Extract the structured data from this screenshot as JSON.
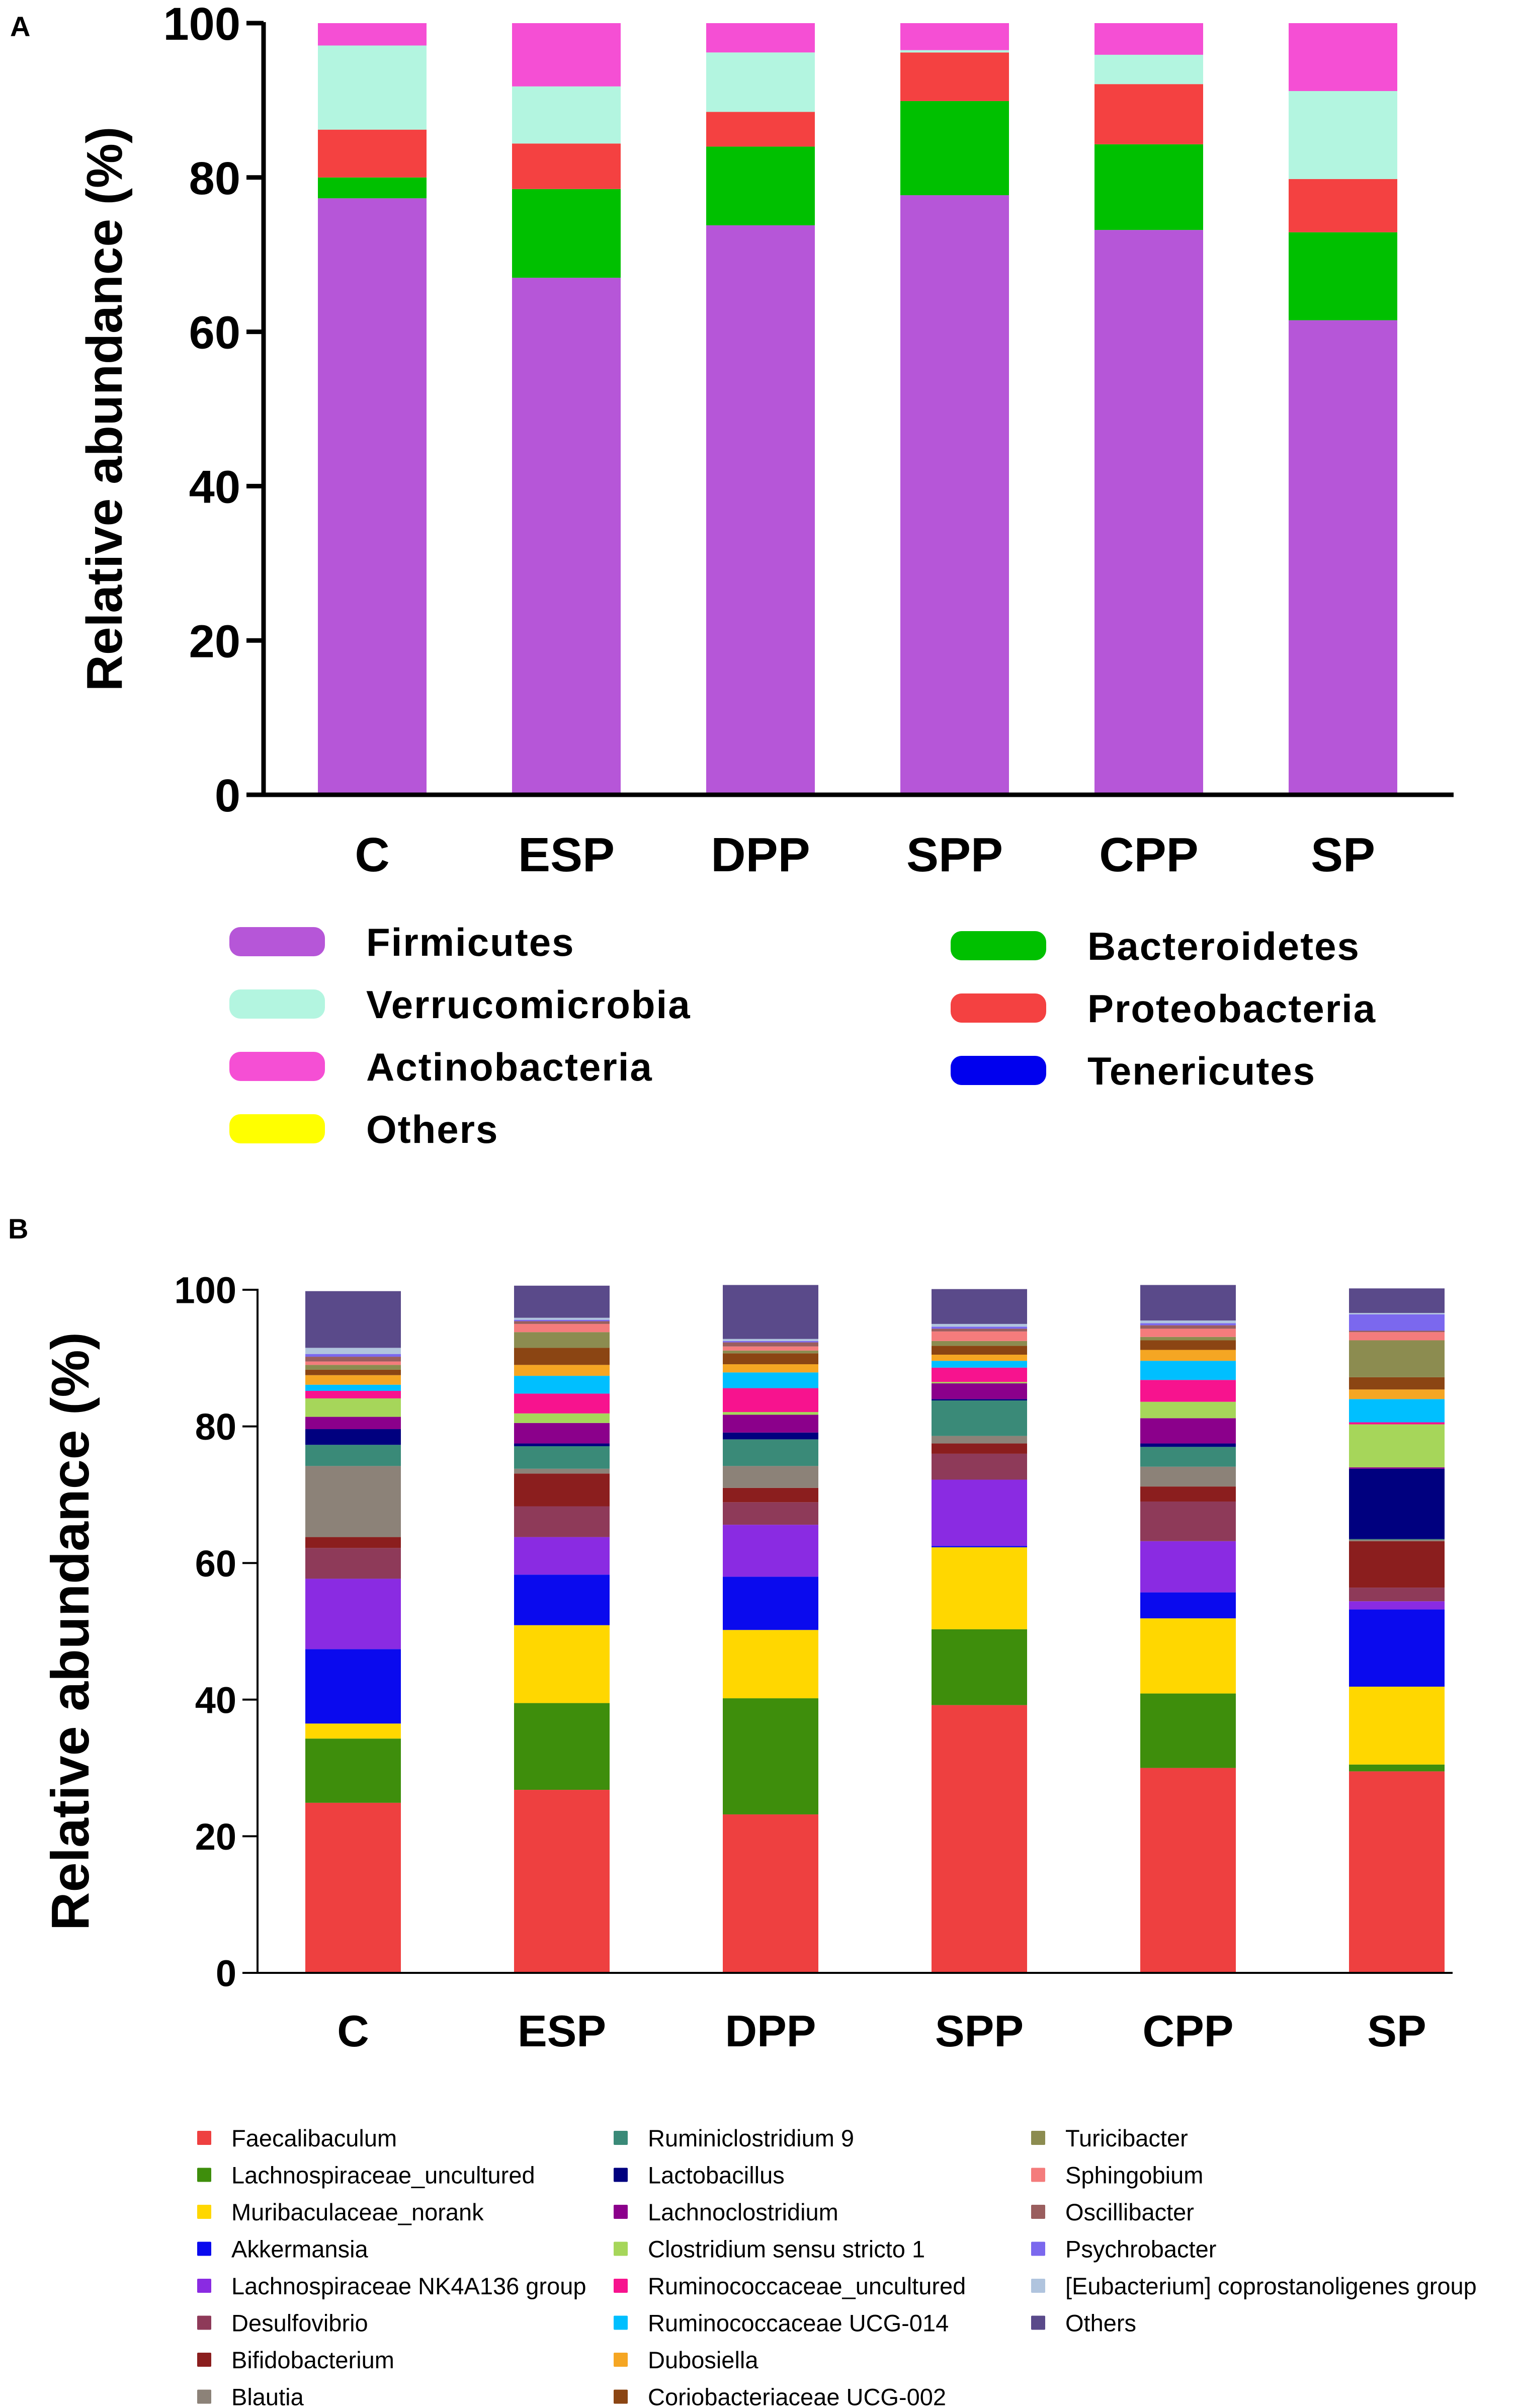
{
  "chart_data": [
    {
      "panel_label": "A",
      "type": "bar",
      "stacked": true,
      "ylabel": "Relative abundance (%)",
      "ylim": [
        0,
        100
      ],
      "yticks": [
        "0",
        "20",
        "40",
        "60",
        "80",
        "100"
      ],
      "categories": [
        "C",
        "ESP",
        "DPP",
        "SPP",
        "CPP",
        "SP"
      ],
      "series": [
        {
          "name": "Firmicutes",
          "color": "#b656d8",
          "values": [
            77.3,
            67.0,
            73.8,
            77.7,
            73.2,
            61.5
          ]
        },
        {
          "name": "Bacteroidetes",
          "color": "#00c000",
          "values": [
            2.7,
            11.5,
            10.2,
            12.2,
            11.1,
            11.4
          ]
        },
        {
          "name": "Proteobacteria",
          "color": "#f44141",
          "values": [
            6.2,
            5.9,
            4.5,
            6.3,
            7.8,
            6.9
          ]
        },
        {
          "name": "Verrucomicrobia",
          "color": "#b3f5e0",
          "values": [
            10.9,
            7.4,
            7.7,
            0.3,
            3.8,
            11.4
          ]
        },
        {
          "name": "Tenericutes",
          "color": "#0000ee",
          "values": [
            0.0,
            0.0,
            0.0,
            0.0,
            0.0,
            0.0
          ]
        },
        {
          "name": "Actinobacteria",
          "color": "#f54fd4",
          "values": [
            2.9,
            8.2,
            3.8,
            3.5,
            4.1,
            8.8
          ]
        },
        {
          "name": "Others",
          "color": "#ffff00",
          "values": [
            0.0,
            0.0,
            0.0,
            0.0,
            0.0,
            0.0
          ]
        }
      ]
    },
    {
      "panel_label": "B",
      "type": "bar",
      "stacked": true,
      "ylabel": "Relative abundance (%)",
      "ylim": [
        0,
        100
      ],
      "yticks": [
        "0",
        "20",
        "40",
        "60",
        "80",
        "100"
      ],
      "categories": [
        "C",
        "ESP",
        "DPP",
        "SPP",
        "CPP",
        "SP"
      ],
      "series": [
        {
          "name": "Faecalibaculum",
          "color": "#ee4040",
          "values": [
            24.9,
            26.8,
            23.2,
            39.2,
            30.0,
            29.5
          ]
        },
        {
          "name": "Lachnospiraceae_uncultured",
          "color": "#3e8e0c",
          "values": [
            9.4,
            12.7,
            17.0,
            11.1,
            10.9,
            1.0
          ]
        },
        {
          "name": "Muribaculaceae_norank",
          "color": "#ffd700",
          "values": [
            2.2,
            11.4,
            10.0,
            12.0,
            11.0,
            11.4
          ]
        },
        {
          "name": "Akkermansia",
          "color": "#0a0aee",
          "values": [
            10.9,
            7.4,
            7.8,
            0.2,
            3.8,
            11.3
          ]
        },
        {
          "name": "Lachnospiraceae NK4A136 group",
          "color": "#8a2be2",
          "values": [
            10.3,
            5.5,
            7.6,
            9.7,
            7.5,
            1.2
          ]
        },
        {
          "name": "Desulfovibrio",
          "color": "#8e3a59",
          "values": [
            4.5,
            4.5,
            3.3,
            3.8,
            5.8,
            2.0
          ]
        },
        {
          "name": "Bifidobacterium",
          "color": "#8b1e1e",
          "values": [
            1.6,
            4.8,
            2.1,
            1.5,
            2.2,
            6.8
          ]
        },
        {
          "name": "Blautia",
          "color": "#8c8278",
          "values": [
            10.4,
            0.7,
            3.2,
            1.1,
            2.9,
            0.2
          ]
        },
        {
          "name": "Ruminiclostridium 9",
          "color": "#3a8a78",
          "values": [
            3.1,
            3.3,
            3.9,
            5.2,
            2.9,
            0.1
          ]
        },
        {
          "name": "Lactobacillus",
          "color": "#00007f",
          "values": [
            2.3,
            0.4,
            1.0,
            0.2,
            0.5,
            10.3
          ]
        },
        {
          "name": "Lachnoclostridium",
          "color": "#8b008b",
          "values": [
            1.8,
            3.0,
            2.6,
            2.3,
            3.7,
            0.2
          ]
        },
        {
          "name": "Clostridium sensu stricto 1",
          "color": "#a6d65a",
          "values": [
            2.7,
            1.4,
            0.4,
            0.2,
            2.4,
            6.3
          ]
        },
        {
          "name": "Ruminococcaceae_uncultured",
          "color": "#f7138e",
          "values": [
            1.1,
            2.9,
            3.5,
            2.1,
            3.2,
            0.3
          ]
        },
        {
          "name": "Ruminococcaceae UCG-014",
          "color": "#00bfff",
          "values": [
            0.9,
            2.6,
            2.3,
            1.0,
            2.8,
            3.4
          ]
        },
        {
          "name": "Dubosiella",
          "color": "#f5a623",
          "values": [
            1.4,
            1.6,
            1.2,
            0.9,
            1.6,
            1.4
          ]
        },
        {
          "name": "Coriobacteriaceae UCG-002",
          "color": "#8b4513",
          "values": [
            0.8,
            2.5,
            1.6,
            1.3,
            1.4,
            1.8
          ]
        },
        {
          "name": "Turicibacter",
          "color": "#8c8c50",
          "values": [
            0.7,
            2.3,
            0.4,
            0.7,
            0.5,
            5.4
          ]
        },
        {
          "name": "Sphingobium",
          "color": "#f47c7c",
          "values": [
            0.5,
            1.2,
            0.6,
            1.4,
            1.2,
            1.2
          ]
        },
        {
          "name": "Oscillibacter",
          "color": "#9a5e5e",
          "values": [
            0.7,
            0.4,
            0.6,
            0.4,
            0.5,
            0.2
          ]
        },
        {
          "name": "Psychrobacter",
          "color": "#7b68ee",
          "values": [
            0.4,
            0.2,
            0.2,
            0.3,
            0.3,
            2.4
          ]
        },
        {
          "name": "[Eubacterium] coprostanoligenes group",
          "color": "#b0c4de",
          "values": [
            0.9,
            0.3,
            0.3,
            0.4,
            0.4,
            0.2
          ]
        },
        {
          "name": "Others",
          "color": "#5a4a8a",
          "values": [
            8.3,
            4.7,
            7.9,
            5.1,
            5.2,
            3.6
          ]
        }
      ]
    }
  ]
}
